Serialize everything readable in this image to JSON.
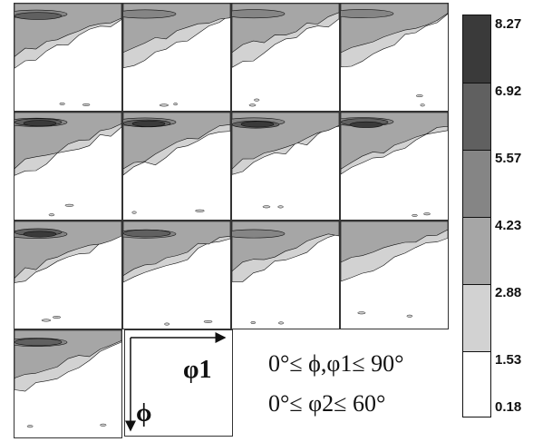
{
  "chart_data": {
    "type": "heatmap",
    "title": "",
    "subtitle": "",
    "xlabel": "φ1",
    "ylabel": "ϕ",
    "panel_count": 13,
    "grid": {
      "columns": 4,
      "rows": 4
    },
    "range_annotation": [
      "0°≤ ϕ,φ1≤ 90°",
      "0°≤ φ2≤ 60°"
    ],
    "colorbar": {
      "levels": [
        8.27,
        6.92,
        5.57,
        4.23,
        2.88,
        1.53,
        0.18
      ],
      "labels": [
        "8.27",
        "6.92",
        "5.57",
        "4.23",
        "2.88",
        "1.53",
        "0.18"
      ],
      "colors": [
        "#3a3a3a",
        "#606060",
        "#858585",
        "#a6a6a6",
        "#d2d2d2",
        "#ffffff"
      ]
    },
    "panels": [
      {
        "peak_level": 5.57
      },
      {
        "peak_level": 4.23
      },
      {
        "peak_level": 4.23
      },
      {
        "peak_level": 4.23
      },
      {
        "peak_level": 8.27
      },
      {
        "peak_level": 8.27
      },
      {
        "peak_level": 8.27
      },
      {
        "peak_level": 6.92
      },
      {
        "peak_level": 8.27
      },
      {
        "peak_level": 5.57
      },
      {
        "peak_level": 4.23
      },
      {
        "peak_level": 2.88
      },
      {
        "peak_level": 5.57
      }
    ]
  },
  "colors": {
    "outline": "#333333",
    "background": "#ffffff"
  }
}
